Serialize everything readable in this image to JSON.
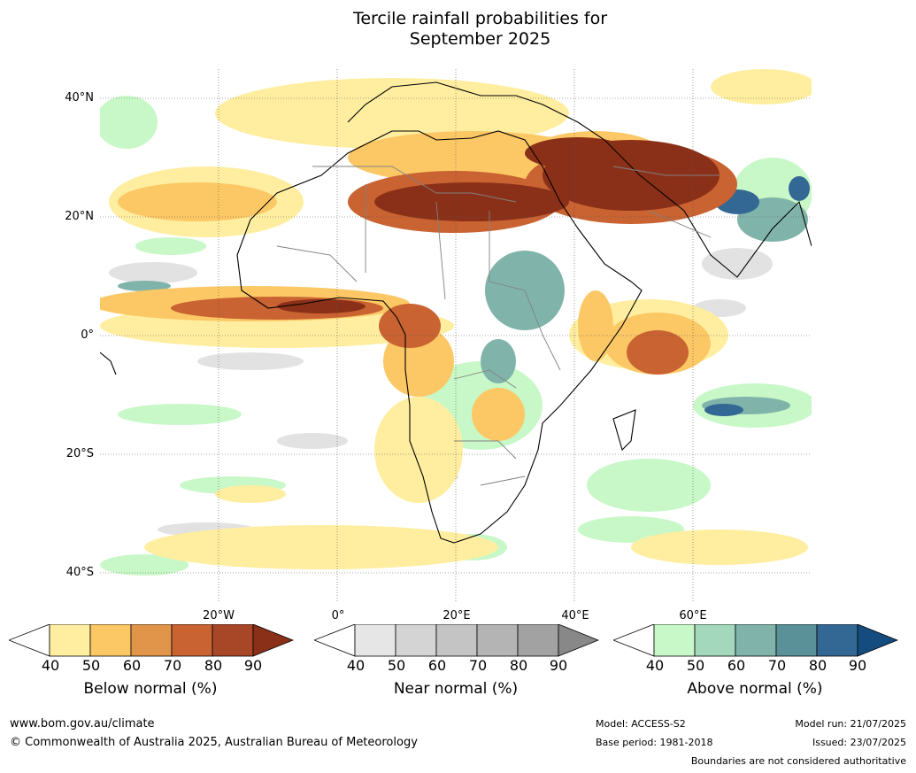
{
  "title_line1": "Tercile rainfall probabilities for",
  "title_line2": "September 2025",
  "lat_labels": [
    "40°N",
    "20°N",
    "0°",
    "20°S",
    "40°S"
  ],
  "lon_labels": [
    "20°W",
    "0°",
    "20°E",
    "40°E",
    "60°E"
  ],
  "legends": [
    {
      "title": "Below normal (%)",
      "ticks": [
        "40",
        "50",
        "60",
        "70",
        "80",
        "90"
      ],
      "colors": [
        "#ffeea0",
        "#fcc865",
        "#e0954a",
        "#c96332",
        "#a84628",
        "#8b3018"
      ]
    },
    {
      "title": "Near normal (%)",
      "ticks": [
        "40",
        "50",
        "60",
        "70",
        "80",
        "90"
      ],
      "colors": [
        "#e6e6e6",
        "#d4d4d4",
        "#c4c4c4",
        "#b4b4b4",
        "#a2a2a2",
        "#888888"
      ]
    },
    {
      "title": "Above normal (%)",
      "ticks": [
        "40",
        "50",
        "60",
        "70",
        "80",
        "90"
      ],
      "colors": [
        "#c8f8c8",
        "#a4d8bc",
        "#80b4aa",
        "#5a9098",
        "#346894",
        "#144c80"
      ]
    }
  ],
  "footer": {
    "website": "www.bom.gov.au/climate",
    "copyright": "© Commonwealth of Australia 2025, Australian Bureau of Meteorology",
    "model": "Model: ACCESS-S2",
    "base_period": "Base period: 1981-2018",
    "model_run": "Model run: 21/07/2025",
    "issued": "Issued: 23/07/2025",
    "disclaimer": "Boundaries are not considered authoritative"
  },
  "map_colors": {
    "below_light": "#ffeea0",
    "below_mid": "#fcc865",
    "below_strong": "#c96332",
    "below_max": "#8b3018",
    "near": "#e2e2e2",
    "above_light": "#c8f8c8",
    "above_mid": "#80b4aa",
    "above_strong": "#346894"
  }
}
